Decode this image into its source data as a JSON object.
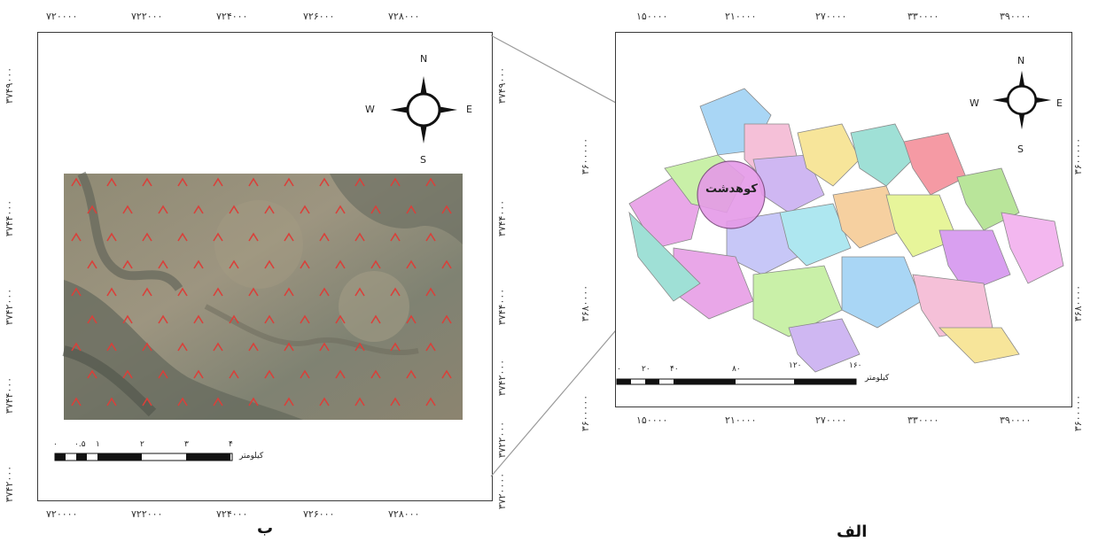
{
  "left_panel": {
    "caption": "ب",
    "top_ticks": [
      "۷۲۰۰۰۰",
      "۷۲۲۰۰۰",
      "۷۲۴۰۰۰",
      "۷۲۶۰۰۰",
      "۷۲۸۰۰۰"
    ],
    "bottom_ticks": [
      "۷۲۰۰۰۰",
      "۷۲۲۰۰۰",
      "۷۲۴۰۰۰",
      "۷۲۶۰۰۰",
      "۷۲۸۰۰۰"
    ],
    "left_ticks": [
      "۳۷۴۹۰۰۰",
      "۳۷۴۴۰۰۰",
      "۳۷۴۲۰۰۰",
      "۳۷۴۴۰۰۰",
      "۳۷۴۲۰۰۰"
    ],
    "right_ticks": [
      "۳۷۴۹۰۰۰",
      "۳۷۴۴۰۰۰",
      "۳۷۴۴۰۰۰",
      "۳۷۴۲۰۰۰",
      "۳۷۲۲۰۰۰",
      "۳۷۲۰۰۰۰"
    ],
    "compass": {
      "n": "N",
      "s": "S",
      "e": "E",
      "w": "W"
    },
    "scale": {
      "unit": "کیلومتر",
      "labels": [
        "۰",
        "۰.۵",
        "۱",
        "۲",
        "۳",
        "۴"
      ]
    },
    "imagery_label_color": "#d9403a"
  },
  "right_panel": {
    "caption": "الف",
    "top_ticks": [
      "۱۵۰۰۰۰",
      "۲۱۰۰۰۰",
      "۲۷۰۰۰۰",
      "۳۳۰۰۰۰",
      "۳۹۰۰۰۰"
    ],
    "bottom_ticks": [
      "۱۵۰۰۰۰",
      "۲۱۰۰۰۰",
      "۲۷۰۰۰۰",
      "۳۳۰۰۰۰",
      "۳۹۰۰۰۰"
    ],
    "left_ticks": [
      "۳۶۰۰۰۰۰",
      "۳۶۸۰۰۰۰",
      "۳۶۰۰۰۰۰"
    ],
    "right_ticks": [
      "۳۶۰۰۰۰۰",
      "۳۶۸۰۰۰۰",
      "۳۶۰۰۰۰۰"
    ],
    "compass": {
      "n": "N",
      "s": "S",
      "e": "E",
      "w": "W"
    },
    "study_area_label": "کوهدشت",
    "scale": {
      "unit": "کیلومتر",
      "labels": [
        "۰",
        "۲۰",
        "۴۰",
        "۸۰",
        "۱۲۰",
        "۱۶۰"
      ]
    },
    "region_colors": [
      "#e9a7e8",
      "#c9f0a8",
      "#a9d6f5",
      "#f5c0d8",
      "#cfb7f2",
      "#f7e59a",
      "#9fe0d6",
      "#f59aa4",
      "#b9e59a",
      "#f3b7ef",
      "#c7c7f7",
      "#aee7f0",
      "#f6d0a0",
      "#e7f59a",
      "#d9a0f0"
    ],
    "highlight_color": "#e59ae8"
  }
}
